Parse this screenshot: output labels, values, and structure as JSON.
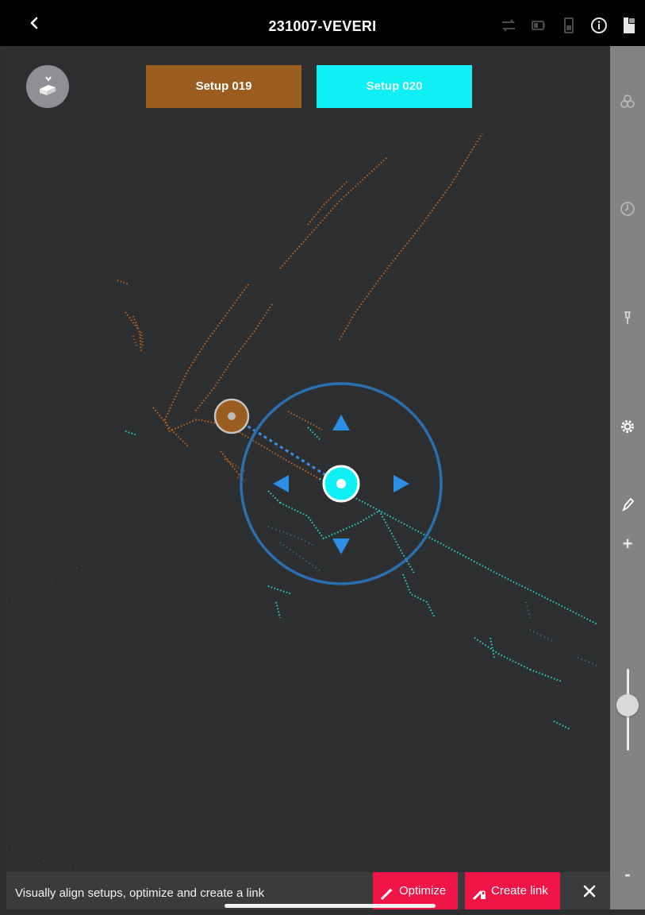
{
  "header": {
    "title": "231007-VEVERI",
    "back_icon": "chevron-left-icon",
    "status_icons": [
      "swap-icon",
      "battery-icon",
      "device-icon",
      "info-icon",
      "layers-icon"
    ]
  },
  "setups": {
    "left_label": "Setup 019",
    "right_label": "Setup 020",
    "left_color": "#9b5d1f",
    "right_color": "#0ef0f5"
  },
  "float_button_icon": "box-eject-icon",
  "sidebar": {
    "icons": [
      "biohazard-icon",
      "compass-icon",
      "pin-icon",
      "gear-icon",
      "pen-icon"
    ],
    "zoom_in_label": "+",
    "zoom_out_label": "-",
    "zoom_level": 0.55
  },
  "bottom": {
    "hint": "Visually align setups, optimize and create a link",
    "optimize_label": "Optimize",
    "create_link_label": "Create link",
    "close_icon": "close-icon",
    "action_color": "#f01447"
  },
  "colors": {
    "setup_019_points": "#c9681e",
    "setup_020_points": "#27d7cf",
    "ring": "#2a6fb0"
  }
}
